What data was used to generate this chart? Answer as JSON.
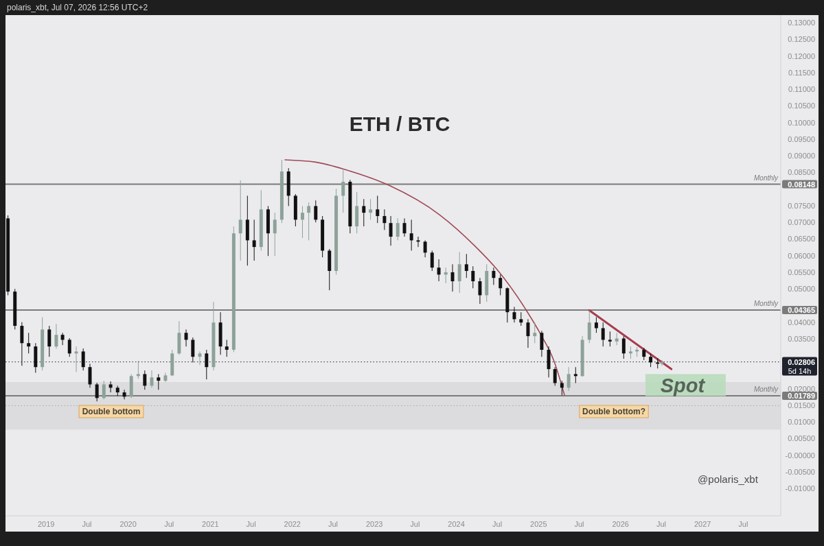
{
  "chart_data": {
    "type": "candlestick",
    "title": "ETH / BTC",
    "x": [
      "2018-07-15",
      "2018-08-15",
      "2018-09-15",
      "2018-10-15",
      "2018-11-15",
      "2018-12-15",
      "2019-01-15",
      "2019-02-15",
      "2019-03-15",
      "2019-04-15",
      "2019-05-15",
      "2019-06-15",
      "2019-07-15",
      "2019-08-15",
      "2019-09-15",
      "2019-10-15",
      "2019-11-15",
      "2019-12-15",
      "2020-01-15",
      "2020-02-15",
      "2020-03-15",
      "2020-04-15",
      "2020-05-15",
      "2020-06-15",
      "2020-07-15",
      "2020-08-15",
      "2020-09-15",
      "2020-10-15",
      "2020-11-15",
      "2020-12-15",
      "2021-01-15",
      "2021-02-15",
      "2021-03-15",
      "2021-04-15",
      "2021-05-15",
      "2021-06-15",
      "2021-07-15",
      "2021-08-15",
      "2021-09-15",
      "2021-10-15",
      "2021-11-15",
      "2021-12-15",
      "2022-01-15",
      "2022-02-15",
      "2022-03-15",
      "2022-04-15",
      "2022-05-15",
      "2022-06-15",
      "2022-07-15",
      "2022-08-15",
      "2022-09-15",
      "2022-10-15",
      "2022-11-15",
      "2022-12-15",
      "2023-01-15",
      "2023-02-15",
      "2023-03-15",
      "2023-04-15",
      "2023-05-15",
      "2023-06-15",
      "2023-07-15",
      "2023-08-15",
      "2023-09-15",
      "2023-10-15",
      "2023-11-15",
      "2023-12-15",
      "2024-01-15",
      "2024-02-15",
      "2024-03-15",
      "2024-04-15",
      "2024-05-15",
      "2024-06-15",
      "2024-07-15",
      "2024-08-15",
      "2024-09-15",
      "2024-10-15",
      "2024-11-15",
      "2024-12-15",
      "2025-01-15",
      "2025-02-15",
      "2025-03-15",
      "2025-04-15",
      "2025-05-15",
      "2025-06-15",
      "2025-07-15",
      "2025-08-15",
      "2025-09-15",
      "2025-10-15",
      "2025-11-15",
      "2025-12-15",
      "2026-01-15",
      "2026-02-15",
      "2026-03-15",
      "2026-04-15",
      "2026-05-15",
      "2026-06-15",
      "2026-07-04"
    ],
    "ohlc": [
      [
        0.0712,
        0.0721,
        0.0481,
        0.0492
      ],
      [
        0.0492,
        0.05,
        0.0378,
        0.0389
      ],
      [
        0.0389,
        0.04,
        0.0269,
        0.0337
      ],
      [
        0.0337,
        0.0368,
        0.0306,
        0.0327
      ],
      [
        0.0327,
        0.0337,
        0.0248,
        0.0265
      ],
      [
        0.0265,
        0.0415,
        0.0255,
        0.0378
      ],
      [
        0.0378,
        0.0389,
        0.0296,
        0.0327
      ],
      [
        0.0327,
        0.0395,
        0.032,
        0.0362
      ],
      [
        0.0362,
        0.0368,
        0.0331,
        0.0347
      ],
      [
        0.0347,
        0.0352,
        0.0296,
        0.0306
      ],
      [
        0.0306,
        0.0327,
        0.025,
        0.0312
      ],
      [
        0.0312,
        0.0321,
        0.0255,
        0.0265
      ],
      [
        0.0265,
        0.0275,
        0.0203,
        0.0213
      ],
      [
        0.0213,
        0.0218,
        0.0162,
        0.0172
      ],
      [
        0.0172,
        0.0224,
        0.0168,
        0.0213
      ],
      [
        0.0213,
        0.0222,
        0.0189,
        0.0203
      ],
      [
        0.0203,
        0.0209,
        0.0178,
        0.0189
      ],
      [
        0.0189,
        0.0197,
        0.0168,
        0.0176
      ],
      [
        0.0176,
        0.0244,
        0.0172,
        0.0238
      ],
      [
        0.0238,
        0.0284,
        0.023,
        0.0244
      ],
      [
        0.0244,
        0.0255,
        0.0197,
        0.0209
      ],
      [
        0.0209,
        0.0255,
        0.0203,
        0.0234
      ],
      [
        0.0234,
        0.0244,
        0.0197,
        0.0224
      ],
      [
        0.0224,
        0.0248,
        0.022,
        0.024
      ],
      [
        0.024,
        0.0317,
        0.0238,
        0.0306
      ],
      [
        0.0306,
        0.0403,
        0.0302,
        0.0368
      ],
      [
        0.0368,
        0.0378,
        0.0327,
        0.0347
      ],
      [
        0.0347,
        0.0354,
        0.0279,
        0.0296
      ],
      [
        0.0296,
        0.0312,
        0.0271,
        0.0306
      ],
      [
        0.0306,
        0.0317,
        0.0228,
        0.0265
      ],
      [
        0.0265,
        0.0461,
        0.0255,
        0.0399
      ],
      [
        0.0399,
        0.043,
        0.0302,
        0.0327
      ],
      [
        0.0327,
        0.0347,
        0.0296,
        0.0317
      ],
      [
        0.0317,
        0.0688,
        0.031,
        0.0667
      ],
      [
        0.0667,
        0.0826,
        0.0585,
        0.0708
      ],
      [
        0.0708,
        0.078,
        0.057,
        0.0646
      ],
      [
        0.0646,
        0.0708,
        0.0585,
        0.0626
      ],
      [
        0.0626,
        0.0797,
        0.0615,
        0.0739
      ],
      [
        0.0739,
        0.0749,
        0.0599,
        0.0667
      ],
      [
        0.0667,
        0.0729,
        0.0599,
        0.0708
      ],
      [
        0.0708,
        0.0888,
        0.0698,
        0.0853
      ],
      [
        0.0853,
        0.0863,
        0.0749,
        0.078
      ],
      [
        0.078,
        0.0785,
        0.0688,
        0.0708
      ],
      [
        0.0708,
        0.0749,
        0.0653,
        0.0729
      ],
      [
        0.0729,
        0.076,
        0.0646,
        0.0749
      ],
      [
        0.0749,
        0.0766,
        0.07,
        0.0708
      ],
      [
        0.0708,
        0.0719,
        0.0595,
        0.0615
      ],
      [
        0.0615,
        0.062,
        0.0496,
        0.0554
      ],
      [
        0.0554,
        0.0801,
        0.0543,
        0.078
      ],
      [
        0.078,
        0.0857,
        0.0729,
        0.0822
      ],
      [
        0.0822,
        0.0828,
        0.0667,
        0.0688
      ],
      [
        0.0688,
        0.0791,
        0.0667,
        0.0749
      ],
      [
        0.0749,
        0.077,
        0.0688,
        0.0729
      ],
      [
        0.0729,
        0.077,
        0.0708,
        0.0739
      ],
      [
        0.0739,
        0.078,
        0.0698,
        0.0719
      ],
      [
        0.0719,
        0.0739,
        0.0677,
        0.0698
      ],
      [
        0.0698,
        0.0719,
        0.063,
        0.0657
      ],
      [
        0.0657,
        0.0712,
        0.0646,
        0.0698
      ],
      [
        0.0698,
        0.0712,
        0.0657,
        0.0667
      ],
      [
        0.0667,
        0.0708,
        0.0615,
        0.0646
      ],
      [
        0.0646,
        0.0657,
        0.0626,
        0.0642
      ],
      [
        0.0642,
        0.0646,
        0.0595,
        0.0609
      ],
      [
        0.0609,
        0.0615,
        0.0554,
        0.0564
      ],
      [
        0.0564,
        0.0589,
        0.0523,
        0.0543
      ],
      [
        0.0543,
        0.0564,
        0.0517,
        0.055
      ],
      [
        0.055,
        0.0574,
        0.0492,
        0.0523
      ],
      [
        0.0523,
        0.0611,
        0.0488,
        0.0574
      ],
      [
        0.0574,
        0.0605,
        0.0533,
        0.0554
      ],
      [
        0.0554,
        0.0568,
        0.0502,
        0.0523
      ],
      [
        0.0523,
        0.0533,
        0.0455,
        0.0481
      ],
      [
        0.0481,
        0.0574,
        0.0461,
        0.0554
      ],
      [
        0.0554,
        0.0564,
        0.0512,
        0.0533
      ],
      [
        0.0533,
        0.0543,
        0.0481,
        0.0502
      ],
      [
        0.0502,
        0.0505,
        0.0399,
        0.043
      ],
      [
        0.043,
        0.0446,
        0.0399,
        0.0409
      ],
      [
        0.0409,
        0.043,
        0.0389,
        0.0399
      ],
      [
        0.0399,
        0.0409,
        0.0323,
        0.0358
      ],
      [
        0.0358,
        0.0399,
        0.0337,
        0.0368
      ],
      [
        0.0368,
        0.0374,
        0.0296,
        0.0317
      ],
      [
        0.0317,
        0.0327,
        0.0234,
        0.0259
      ],
      [
        0.0259,
        0.0265,
        0.0209,
        0.0217
      ],
      [
        0.0217,
        0.0224,
        0.018,
        0.0203
      ],
      [
        0.0203,
        0.0265,
        0.0193,
        0.0244
      ],
      [
        0.0244,
        0.0265,
        0.0217,
        0.0238
      ],
      [
        0.0238,
        0.0358,
        0.0236,
        0.0347
      ],
      [
        0.0347,
        0.0436,
        0.0337,
        0.0399
      ],
      [
        0.0399,
        0.0415,
        0.0368,
        0.0382
      ],
      [
        0.0382,
        0.0399,
        0.0327,
        0.0347
      ],
      [
        0.0347,
        0.0372,
        0.0327,
        0.0342
      ],
      [
        0.0342,
        0.0368,
        0.0331,
        0.0351
      ],
      [
        0.0351,
        0.0358,
        0.029,
        0.0306
      ],
      [
        0.0306,
        0.0327,
        0.029,
        0.0312
      ],
      [
        0.0312,
        0.0325,
        0.0296,
        0.0317
      ],
      [
        0.0317,
        0.0323,
        0.0286,
        0.0296
      ],
      [
        0.0296,
        0.0306,
        0.0265,
        0.0279
      ],
      [
        0.0279,
        0.0292,
        0.0261,
        0.0275
      ],
      [
        0.0275,
        0.0286,
        0.0269,
        0.02806
      ]
    ],
    "colors": [
      "#111111",
      "#111111",
      "#111111",
      "#111111",
      "#111111",
      "#8da298",
      "#111111",
      "#8da298",
      "#111111",
      "#111111",
      "#8da298",
      "#111111",
      "#111111",
      "#111111",
      "#8da298",
      "#111111",
      "#111111",
      "#111111",
      "#8da298",
      "#8da298",
      "#111111",
      "#8da298",
      "#111111",
      "#8da298",
      "#8da298",
      "#8da298",
      "#111111",
      "#111111",
      "#8da298",
      "#111111",
      "#8da298",
      "#111111",
      "#111111",
      "#8da298",
      "#8da298",
      "#111111",
      "#111111",
      "#8da298",
      "#111111",
      "#8da298",
      "#8da298",
      "#111111",
      "#111111",
      "#8da298",
      "#8da298",
      "#111111",
      "#111111",
      "#111111",
      "#8da298",
      "#8da298",
      "#111111",
      "#8da298",
      "#111111",
      "#8da298",
      "#111111",
      "#111111",
      "#111111",
      "#8da298",
      "#111111",
      "#111111",
      "#111111",
      "#111111",
      "#111111",
      "#111111",
      "#8da298",
      "#111111",
      "#8da298",
      "#111111",
      "#111111",
      "#111111",
      "#8da298",
      "#111111",
      "#111111",
      "#111111",
      "#111111",
      "#111111",
      "#111111",
      "#8da298",
      "#111111",
      "#111111",
      "#111111",
      "#111111",
      "#8da298",
      "#111111",
      "#8da298",
      "#8da298",
      "#111111",
      "#111111",
      "#111111",
      "#8da298",
      "#111111",
      "#8da298",
      "#8da298",
      "#111111",
      "#111111",
      "#111111",
      "#8da298"
    ],
    "series": [
      {
        "type": "line",
        "x": [
          "2021-11-29",
          "2022-04-15",
          "2022-09-01",
          "2023-03-08",
          "2023-10-18",
          "2024-03-28",
          "2024-06-28",
          "2024-11-09",
          "2025-01-10",
          "2025-03-12",
          "2025-04-26"
        ],
        "values": [
          0.0888,
          0.0881,
          0.0857,
          0.0811,
          0.0723,
          0.0626,
          0.056,
          0.0434,
          0.0364,
          0.0281,
          0.0182
        ],
        "color": "#a04a57"
      },
      {
        "type": "line",
        "x": [
          "2025-08-14",
          "2026-08-15"
        ],
        "values": [
          0.0436,
          0.0259
        ],
        "color": "#a83c4f"
      }
    ],
    "xlim": [
      "2018-07-04",
      "2027-12-15"
    ],
    "xticks": [
      {
        "value": "2019-01",
        "label": "2019"
      },
      {
        "value": "2019-07",
        "label": "Jul"
      },
      {
        "value": "2020-01",
        "label": "2020"
      },
      {
        "value": "2020-07",
        "label": "Jul"
      },
      {
        "value": "2021-01",
        "label": "2021"
      },
      {
        "value": "2021-07",
        "label": "Jul"
      },
      {
        "value": "2022-01",
        "label": "2022"
      },
      {
        "value": "2022-07",
        "label": "Jul"
      },
      {
        "value": "2023-01",
        "label": "2023"
      },
      {
        "value": "2023-07",
        "label": "Jul"
      },
      {
        "value": "2024-01",
        "label": "2024"
      },
      {
        "value": "2024-07",
        "label": "Jul"
      },
      {
        "value": "2025-01",
        "label": "2025"
      },
      {
        "value": "2025-07",
        "label": "Jul"
      },
      {
        "value": "2026-01",
        "label": "2026"
      },
      {
        "value": "2026-07",
        "label": "Jul"
      },
      {
        "value": "2027-01",
        "label": "2027"
      },
      {
        "value": "2027-07",
        "label": "Jul"
      }
    ],
    "ylim": [
      -0.0182,
      0.1323
    ],
    "yticks": [
      {
        "value": -0.01,
        "label": "-0.01000"
      },
      {
        "value": -0.005,
        "label": "-0.00500"
      },
      {
        "value": 0,
        "label": "-0.00000"
      },
      {
        "value": 0.005,
        "label": "0.00500"
      },
      {
        "value": 0.01,
        "label": "0.01000"
      },
      {
        "value": 0.015,
        "label": "0.01500"
      },
      0.01789,
      {
        "value": 0.02,
        "label": "0.02000"
      },
      0.02806,
      {
        "value": 0.035,
        "label": "0.03500"
      },
      {
        "value": 0.04,
        "label": "0.04000"
      },
      0.04365,
      {
        "value": 0.05,
        "label": "0.05000"
      },
      {
        "value": 0.055,
        "label": "0.05500"
      },
      {
        "value": 0.06,
        "label": "0.06000"
      },
      {
        "value": 0.065,
        "label": "0.06500"
      },
      {
        "value": 0.07,
        "label": "0.07000"
      },
      {
        "value": 0.075,
        "label": "0.07500"
      },
      0.08148,
      {
        "value": 0.085,
        "label": "0.08500"
      },
      {
        "value": 0.09,
        "label": "0.09000"
      },
      {
        "value": 0.095,
        "label": "0.09500"
      },
      {
        "value": 0.1,
        "label": "0.10000"
      },
      {
        "value": 0.105,
        "label": "0.10500"
      },
      {
        "value": 0.11,
        "label": "0.11000"
      },
      {
        "value": 0.115,
        "label": "0.11500"
      },
      {
        "value": 0.12,
        "label": "0.12000"
      },
      {
        "value": 0.125,
        "label": "0.12500"
      },
      {
        "value": 0.13,
        "label": "0.13000"
      }
    ],
    "ref_lines": [
      {
        "axis": "y",
        "value": 0.08148,
        "label": "Monthly",
        "color": "#7b7b7b"
      },
      {
        "axis": "y",
        "value": 0.04365,
        "label": "Monthly",
        "color": "#7b7b7b"
      },
      {
        "axis": "y",
        "value": 0.01789,
        "label": "Monthly",
        "color": "#7b7b7b"
      },
      {
        "axis": "y",
        "value": 0.02806,
        "label": "5d 14h",
        "color": "#1e222d",
        "line_style": "dotted"
      },
      {
        "axis": "y",
        "value": 0.0149,
        "color": "#a8a8a8",
        "line_style": "dotted"
      }
    ],
    "bands": [
      {
        "axis": "y",
        "from": 0.0077,
        "to": 0.022,
        "color": "#dcdcdf"
      }
    ],
    "annotations": [
      "polaris_xbt, Jul 07, 2026 12:56 UTC+2",
      "Double bottom",
      "Double bottom?",
      {
        "text": "Spot",
        "x": "2026-10-16",
        "y": 0.0211
      },
      "@polaris_xbt"
    ]
  }
}
